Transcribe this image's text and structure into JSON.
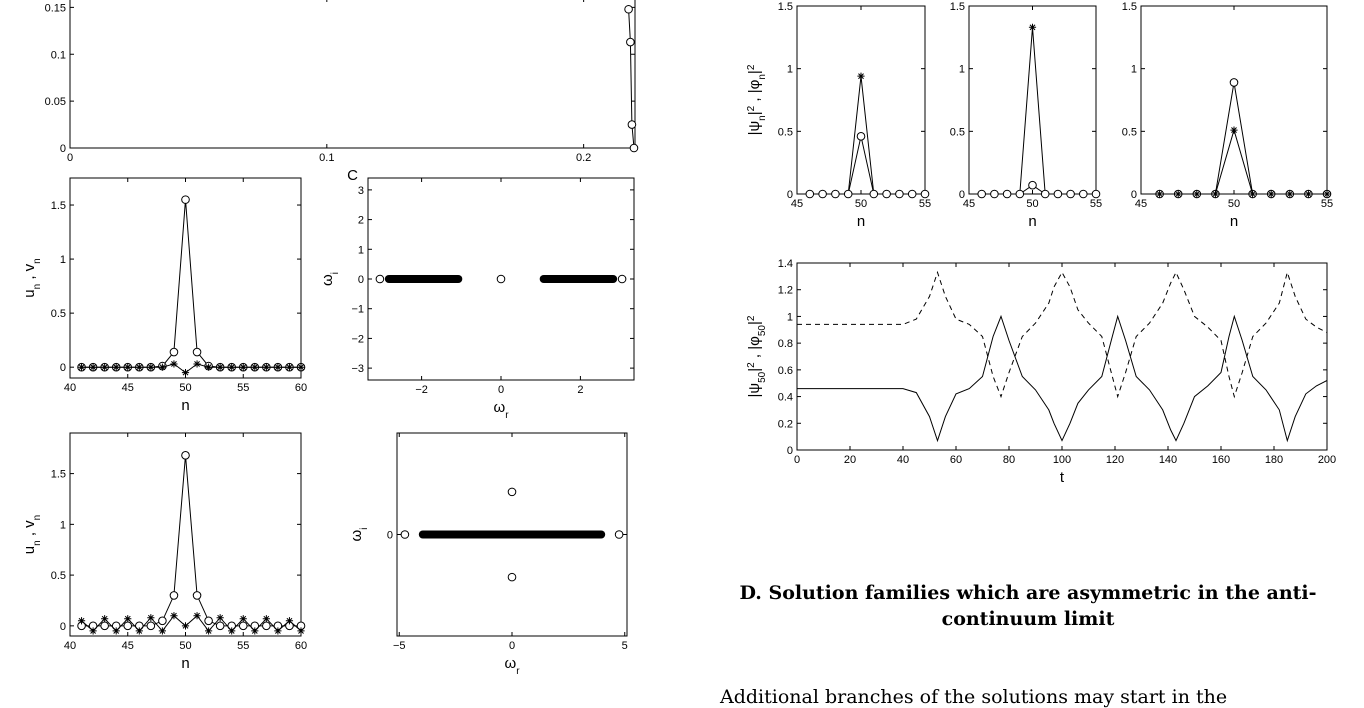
{
  "heading": "D. Solution families which are asymmetric in the anti-continuum limit",
  "body_text": "Additional branches of the solutions may start in the",
  "chart_data": [
    {
      "id": "top-c-plot",
      "type": "line",
      "xlabel": "C",
      "x_ticks": [
        "0",
        "0.1",
        "0.2"
      ],
      "y_ticks": [
        "0",
        "0.05",
        "0.1",
        "0.15"
      ],
      "xlim": [
        0,
        0.22
      ],
      "ylim": [
        0,
        0.16
      ],
      "series": [
        {
          "marker": "circle",
          "points": [
            [
              0.2175,
              0.148
            ],
            [
              0.2182,
              0.113
            ],
            [
              0.2188,
              0.025
            ],
            [
              0.2196,
              0.0
            ]
          ]
        }
      ]
    },
    {
      "id": "profile-1",
      "type": "line",
      "xlabel": "n",
      "ylabel": "u_n , v_n",
      "x_ticks": [
        "40",
        "45",
        "50",
        "55",
        "60"
      ],
      "y_ticks": [
        "0",
        "0.5",
        "1",
        "1.5"
      ],
      "xlim": [
        40,
        60
      ],
      "ylim": [
        -0.1,
        1.75
      ],
      "series": [
        {
          "marker": "circle",
          "x": [
            41,
            42,
            43,
            44,
            45,
            46,
            47,
            48,
            49,
            50,
            51,
            52,
            53,
            54,
            55,
            56,
            57,
            58,
            59,
            60
          ],
          "values": [
            0,
            0,
            0,
            0,
            0,
            0,
            0,
            0.01,
            0.14,
            1.55,
            0.14,
            0.01,
            0,
            0,
            0,
            0,
            0,
            0,
            0,
            0
          ]
        },
        {
          "marker": "star",
          "x": [
            41,
            42,
            43,
            44,
            45,
            46,
            47,
            48,
            49,
            50,
            51,
            52,
            53,
            54,
            55,
            56,
            57,
            58,
            59,
            60
          ],
          "values": [
            0,
            0,
            0,
            0,
            0,
            0,
            0,
            0,
            0.03,
            -0.05,
            0.03,
            0,
            0,
            0,
            0,
            0,
            0,
            0,
            0,
            0
          ]
        }
      ]
    },
    {
      "id": "spectrum-1",
      "type": "scatter",
      "xlabel": "ω_r",
      "ylabel": "ω_i",
      "x_ticks": [
        "−2",
        "0",
        "2"
      ],
      "y_ticks": [
        "−3",
        "−2",
        "−1",
        "0",
        "1",
        "2",
        "3"
      ],
      "xlim": [
        -3.35,
        3.35
      ],
      "ylim": [
        -3.4,
        3.4
      ],
      "isolated_points": [
        [
          -3.05,
          0
        ],
        [
          0,
          0
        ],
        [
          3.05,
          0
        ]
      ],
      "continuous_bands": [
        [
          -2.85,
          -1.05
        ],
        [
          1.05,
          2.85
        ]
      ]
    },
    {
      "id": "profile-2",
      "type": "line",
      "xlabel": "n",
      "ylabel": "u_n , v_n",
      "x_ticks": [
        "40",
        "45",
        "50",
        "55",
        "60"
      ],
      "y_ticks": [
        "0",
        "0.5",
        "1",
        "1.5"
      ],
      "xlim": [
        40,
        60
      ],
      "ylim": [
        -0.1,
        1.9
      ],
      "series": [
        {
          "marker": "circle",
          "x": [
            41,
            42,
            43,
            44,
            45,
            46,
            47,
            48,
            49,
            50,
            51,
            52,
            53,
            54,
            55,
            56,
            57,
            58,
            59,
            60
          ],
          "values": [
            0,
            0,
            0,
            0,
            0,
            0,
            0,
            0.05,
            0.3,
            1.68,
            0.3,
            0.05,
            0,
            0,
            0,
            0,
            0,
            0,
            0,
            0
          ]
        },
        {
          "marker": "star",
          "x": [
            41,
            42,
            43,
            44,
            45,
            46,
            47,
            48,
            49,
            50,
            51,
            52,
            53,
            54,
            55,
            56,
            57,
            58,
            59,
            60
          ],
          "values": [
            0.05,
            -0.05,
            0.07,
            -0.05,
            0.07,
            -0.05,
            0.08,
            -0.05,
            0.1,
            0,
            0.1,
            -0.05,
            0.08,
            -0.05,
            0.07,
            -0.05,
            0.07,
            -0.05,
            0.05,
            -0.05
          ]
        }
      ]
    },
    {
      "id": "spectrum-2",
      "type": "scatter",
      "xlabel": "ω_r",
      "ylabel": "ω_i",
      "x_ticks": [
        "−5",
        "0",
        "5"
      ],
      "y_ticks": [
        "0"
      ],
      "xlim": [
        -5.1,
        5.1
      ],
      "ylim": [
        -1,
        1
      ],
      "isolated_points": [
        [
          -4.75,
          0
        ],
        [
          4.75,
          0
        ],
        [
          0,
          0.42
        ],
        [
          0,
          -0.42
        ]
      ],
      "continuous_bands": [
        [
          -4,
          4
        ]
      ]
    },
    {
      "id": "density-1",
      "type": "line",
      "xlabel": "n",
      "ylabel": "|ψ_n|² , |φ_n|²",
      "x_ticks": [
        "45",
        "50",
        "55"
      ],
      "y_ticks": [
        "0",
        "0.5",
        "1",
        "1.5"
      ],
      "xlim": [
        45,
        55
      ],
      "ylim": [
        0,
        1.5
      ],
      "series": [
        {
          "marker": "star",
          "x": [
            46,
            47,
            48,
            49,
            50,
            51,
            52,
            53,
            54,
            55
          ],
          "values": [
            0,
            0,
            0,
            0,
            0.94,
            0,
            0,
            0,
            0,
            0
          ]
        },
        {
          "marker": "circle",
          "x": [
            46,
            47,
            48,
            49,
            50,
            51,
            52,
            53,
            54,
            55
          ],
          "values": [
            0,
            0,
            0,
            0,
            0.46,
            0,
            0,
            0,
            0,
            0
          ]
        }
      ]
    },
    {
      "id": "density-2",
      "type": "line",
      "xlabel": "n",
      "x_ticks": [
        "45",
        "50",
        "55"
      ],
      "y_ticks": [
        "0",
        "0.5",
        "1",
        "1.5"
      ],
      "xlim": [
        45,
        55
      ],
      "ylim": [
        0,
        1.5
      ],
      "series": [
        {
          "marker": "star",
          "x": [
            46,
            47,
            48,
            49,
            50,
            51,
            52,
            53,
            54,
            55
          ],
          "values": [
            0,
            0,
            0,
            0,
            1.33,
            0,
            0,
            0,
            0,
            0
          ]
        },
        {
          "marker": "circle",
          "x": [
            46,
            47,
            48,
            49,
            50,
            51,
            52,
            53,
            54,
            55
          ],
          "values": [
            0,
            0,
            0,
            0,
            0.07,
            0,
            0,
            0,
            0,
            0
          ]
        }
      ]
    },
    {
      "id": "density-3",
      "type": "line",
      "xlabel": "n",
      "x_ticks": [
        "45",
        "50",
        "55"
      ],
      "y_ticks": [
        "0",
        "0.5",
        "1",
        "1.5"
      ],
      "xlim": [
        45,
        55
      ],
      "ylim": [
        0,
        1.5
      ],
      "series": [
        {
          "marker": "circle",
          "x": [
            46,
            47,
            48,
            49,
            50,
            51,
            52,
            53,
            54,
            55
          ],
          "values": [
            0,
            0,
            0,
            0,
            0.89,
            0,
            0,
            0,
            0,
            0
          ]
        },
        {
          "marker": "star",
          "x": [
            46,
            47,
            48,
            49,
            50,
            51,
            52,
            53,
            54,
            55
          ],
          "values": [
            0,
            0,
            0,
            0,
            0.51,
            0,
            0,
            0,
            0,
            0
          ]
        }
      ]
    },
    {
      "id": "time-evolution",
      "type": "line",
      "xlabel": "t",
      "ylabel": "|ψ_50|² , |φ_50|²",
      "x_ticks": [
        "0",
        "20",
        "40",
        "60",
        "80",
        "100",
        "120",
        "140",
        "160",
        "180",
        "200"
      ],
      "y_ticks": [
        "0",
        "0.2",
        "0.4",
        "0.6",
        "0.8",
        "1",
        "1.2",
        "1.4"
      ],
      "xlim": [
        0,
        200
      ],
      "ylim": [
        0,
        1.4
      ],
      "series": [
        {
          "style": "solid",
          "x": [
            0,
            40,
            45,
            50,
            53,
            56,
            60,
            65,
            70,
            74,
            77,
            80,
            85,
            90,
            95,
            97,
            100,
            103,
            106,
            110,
            115,
            119,
            121,
            124,
            128,
            133,
            138,
            141,
            143,
            146,
            150,
            155,
            160,
            163,
            165,
            168,
            172,
            177,
            182,
            185,
            188,
            192,
            196,
            200
          ],
          "values": [
            0.46,
            0.46,
            0.43,
            0.25,
            0.07,
            0.25,
            0.42,
            0.46,
            0.55,
            0.85,
            1.0,
            0.82,
            0.55,
            0.45,
            0.3,
            0.2,
            0.07,
            0.2,
            0.35,
            0.45,
            0.55,
            0.85,
            1.0,
            0.82,
            0.55,
            0.45,
            0.3,
            0.15,
            0.07,
            0.2,
            0.4,
            0.48,
            0.58,
            0.85,
            1.0,
            0.82,
            0.55,
            0.45,
            0.3,
            0.07,
            0.25,
            0.42,
            0.48,
            0.52
          ]
        },
        {
          "style": "dashed",
          "x": [
            0,
            40,
            45,
            50,
            53,
            56,
            60,
            65,
            70,
            74,
            77,
            80,
            85,
            90,
            95,
            97,
            100,
            103,
            106,
            110,
            115,
            119,
            121,
            124,
            128,
            133,
            138,
            141,
            143,
            146,
            150,
            155,
            160,
            163,
            165,
            168,
            172,
            177,
            182,
            185,
            188,
            192,
            196,
            200
          ],
          "values": [
            0.94,
            0.94,
            0.98,
            1.15,
            1.33,
            1.15,
            0.98,
            0.94,
            0.85,
            0.55,
            0.4,
            0.58,
            0.85,
            0.95,
            1.1,
            1.22,
            1.33,
            1.22,
            1.05,
            0.95,
            0.85,
            0.55,
            0.4,
            0.58,
            0.85,
            0.95,
            1.1,
            1.25,
            1.33,
            1.2,
            1.0,
            0.92,
            0.82,
            0.55,
            0.4,
            0.58,
            0.85,
            0.95,
            1.1,
            1.33,
            1.15,
            0.98,
            0.92,
            0.88
          ]
        }
      ]
    }
  ]
}
